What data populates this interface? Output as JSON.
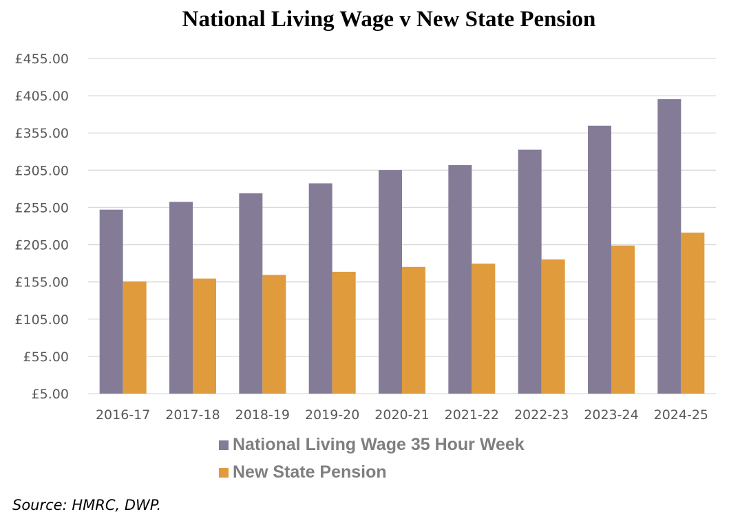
{
  "chart_data": {
    "type": "bar",
    "title": "National Living Wage v New State Pension",
    "categories": [
      "2016-17",
      "2017-18",
      "2018-19",
      "2019-20",
      "2020-21",
      "2021-22",
      "2022-23",
      "2023-24",
      "2024-25"
    ],
    "series": [
      {
        "name": "National Living Wage 35 Hour Week",
        "color": "#847c97",
        "values": [
          252.0,
          262.5,
          274.05,
          287.35,
          305.2,
          311.85,
          332.5,
          364.7,
          400.4
        ]
      },
      {
        "name": "New State Pension",
        "color": "#e09c3c",
        "values": [
          155.65,
          159.55,
          164.35,
          168.6,
          175.2,
          179.6,
          185.15,
          203.85,
          221.2
        ]
      }
    ],
    "ylim": [
      5,
      455
    ],
    "yticks": [
      "£5.00",
      "£55.00",
      "£105.00",
      "£155.00",
      "£205.00",
      "£255.00",
      "£305.00",
      "£355.00",
      "£405.00",
      "£455.00"
    ],
    "ytick_values": [
      5,
      55,
      105,
      155,
      205,
      255,
      305,
      355,
      405,
      455
    ],
    "grid": true,
    "legend": "bottom",
    "xlabel": "",
    "ylabel": ""
  },
  "source": "Source: HMRC, DWP."
}
